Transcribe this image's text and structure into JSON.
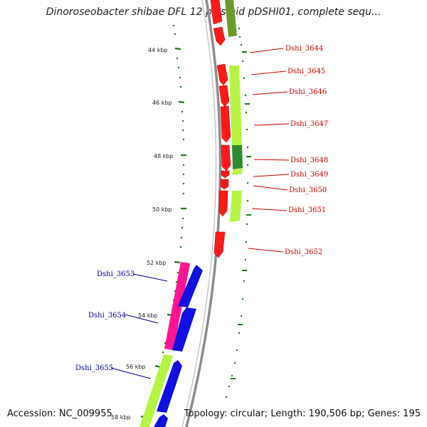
{
  "title": "Dinoroseobacter shibae DFL 12 plasmid pDSHI01, complete sequ...",
  "footer": {
    "accession": "Accession: NC_009955",
    "summary": "Topology: circular; Length: 190,506 bp; Genes: 195"
  },
  "ticks": [
    "44 kbp",
    "46 kbp",
    "48 kbp",
    "50 kbp",
    "52 kbp",
    "54 kbp",
    "56 kbp",
    "58 kbp"
  ],
  "genes_right": [
    "Dshi_3644",
    "Dshi_3645",
    "Dshi_3646",
    "Dshi_3647",
    "Dshi_3648",
    "Dshi_3649",
    "Dshi_3650",
    "Dshi_3651",
    "Dshi_3652"
  ],
  "genes_left": [
    "Dshi_3653",
    "Dshi_3654",
    "Dshi_3655"
  ],
  "colors": {
    "backbone": "#8c8c8c",
    "tick": "#1a7a1a",
    "red_feature": "#ff1a1a",
    "lime_feature": "#b5f542",
    "dark_green_feature": "#2e8b2e",
    "olive_feature": "#6b9a2a",
    "blue_feature": "#1010e0",
    "pink_feature": "#ff1493",
    "label_red": "#cc0000",
    "label_blue": "#000099"
  }
}
